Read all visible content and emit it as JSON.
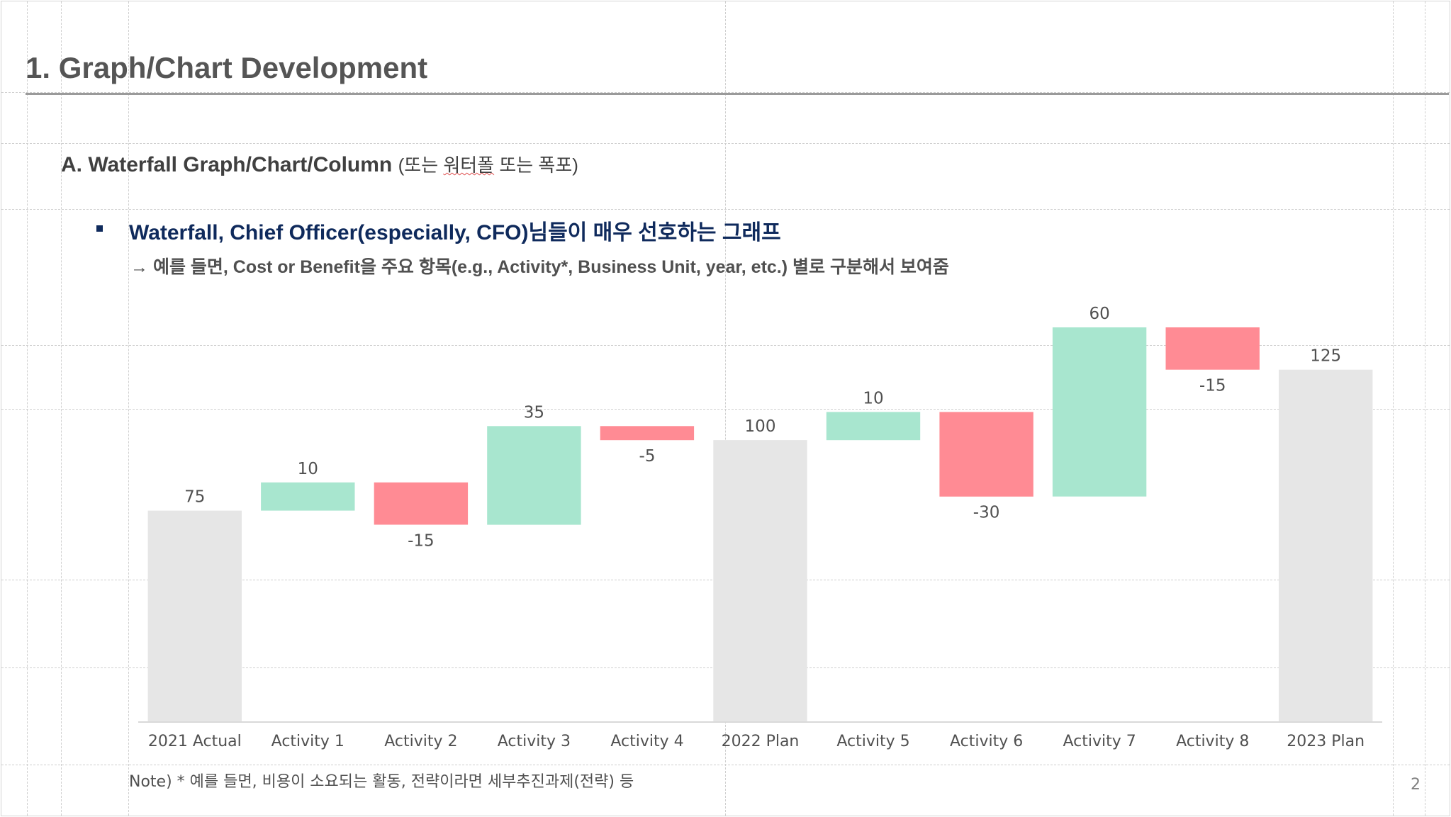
{
  "slide": {
    "title": "1. Graph/Chart Development",
    "section": {
      "heading": "A. Waterfall Graph/Chart/Column",
      "aside_open": "(또는 ",
      "aside_squiggle": "워터폴",
      "aside_close": " 또는 폭포)"
    },
    "bullet": "Waterfall, Chief Officer(especially, CFO)님들이 매우 선호하는 그래프",
    "subtext": "→ 예를 들면, Cost or Benefit을 주요 항목(e.g., Activity*, Business Unit, year, etc.) 별로 구분해서 보여줌",
    "note": "Note) * 예를 들면, 비용이 소요되는 활동, 전략이라면 세부추진과제(전략) 등",
    "page_number": "2"
  },
  "colors": {
    "total": "#e6e6e6",
    "increase": "#a8e6cf",
    "decrease": "#ff8b94",
    "title_text": "#555555",
    "bullet_text": "#0f2a5c",
    "body_text": "#505050"
  },
  "chart_data": {
    "type": "waterfall",
    "categories": [
      "2021 Actual",
      "Activity 1",
      "Activity 2",
      "Activity 3",
      "Activity 4",
      "2022 Plan",
      "Activity 5",
      "Activity 6",
      "Activity 7",
      "Activity 8",
      "2023 Plan"
    ],
    "values": [
      75,
      10,
      -15,
      35,
      -5,
      100,
      10,
      -30,
      60,
      -15,
      125
    ],
    "labels": [
      "75",
      "10",
      "-15",
      "35",
      "-5",
      "100",
      "10",
      "-30",
      "60",
      "-15",
      "125"
    ],
    "kinds": [
      "total",
      "increase",
      "decrease",
      "increase",
      "decrease",
      "total",
      "increase",
      "decrease",
      "increase",
      "decrease",
      "total"
    ],
    "title": "",
    "xlabel": "",
    "ylabel": "",
    "ylim": [
      0,
      140
    ],
    "grid": false,
    "legend": "none"
  }
}
